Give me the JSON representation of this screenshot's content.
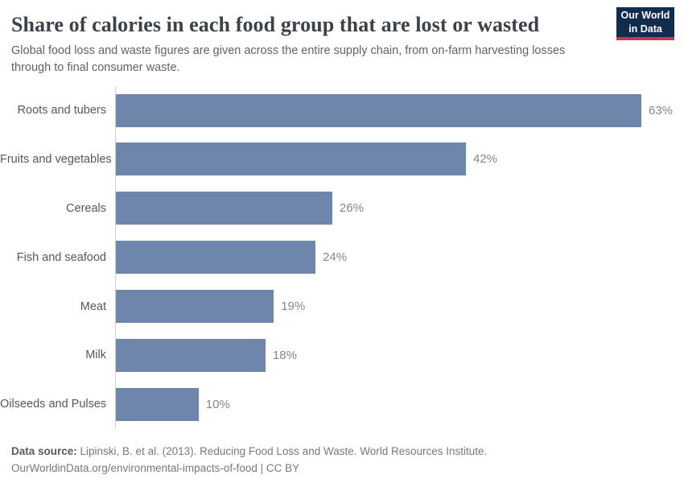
{
  "header": {
    "title": "Share of calories in each food group that are lost or wasted",
    "subtitle": "Global food loss and waste figures are given across the entire supply chain, from on-farm harvesting losses through to final consumer waste.",
    "logo": {
      "line1": "Our World",
      "line2": "in Data"
    }
  },
  "chart_data": {
    "type": "bar",
    "orientation": "horizontal",
    "title": "Share of calories in each food group that are lost or wasted",
    "categories": [
      "Roots and tubers",
      "Fruits and vegetables",
      "Cereals",
      "Fish and seafood",
      "Meat",
      "Milk",
      "Oilseeds and Pulses"
    ],
    "values": [
      63,
      42,
      26,
      24,
      19,
      18,
      10
    ],
    "value_labels": [
      "63%",
      "42%",
      "26%",
      "24%",
      "19%",
      "18%",
      "10%"
    ],
    "unit": "%",
    "xlim": [
      0,
      63
    ],
    "grid": false,
    "legend": "none",
    "value_label_position": "end-of-bar"
  },
  "footer": {
    "data_source_label": "Data source:",
    "data_source_text": " Lipinski, B. et al. (2013). Reducing Food Loss and Waste. World Resources Institute.",
    "license_line": "OurWorldinData.org/environmental-impacts-of-food | CC BY"
  },
  "colors": {
    "bar": "#6e85ac",
    "title": "#3b4248",
    "subtitle": "#5d6368",
    "category": "#4f5963",
    "value": "#878787",
    "axis": "#cfcfcf",
    "footer": "#787878",
    "footer-label": "#5a5a5a",
    "logo-bg": "#122c4e",
    "logo-stripe": "#c23b4c"
  }
}
